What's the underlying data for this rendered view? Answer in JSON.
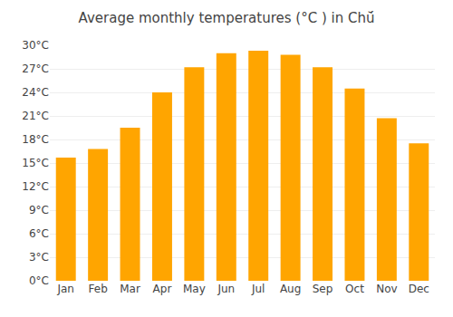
{
  "chart_data": {
    "type": "bar",
    "title": "Average monthly temperatures (°C ) in Chŭ́",
    "categories": [
      "Jan",
      "Feb",
      "Mar",
      "Apr",
      "May",
      "Jun",
      "Jul",
      "Aug",
      "Sep",
      "Oct",
      "Nov",
      "Dec"
    ],
    "values": [
      15.7,
      16.8,
      19.5,
      24.0,
      27.2,
      29.0,
      29.3,
      28.8,
      27.2,
      24.5,
      20.7,
      17.5
    ],
    "color": "#FFA500",
    "ylim": [
      0,
      30
    ],
    "yticks": [
      {
        "value": 0,
        "label": "0°C"
      },
      {
        "value": 3,
        "label": "3°C"
      },
      {
        "value": 6,
        "label": "6°C"
      },
      {
        "value": 9,
        "label": "9°C"
      },
      {
        "value": 12,
        "label": "12°C"
      },
      {
        "value": 15,
        "label": "15°C"
      },
      {
        "value": 18,
        "label": "18°C"
      },
      {
        "value": 21,
        "label": "21°C"
      },
      {
        "value": 24,
        "label": "24°C"
      },
      {
        "value": 27,
        "label": "27°C"
      },
      {
        "value": 30,
        "label": "30°C"
      }
    ],
    "grid": true
  }
}
